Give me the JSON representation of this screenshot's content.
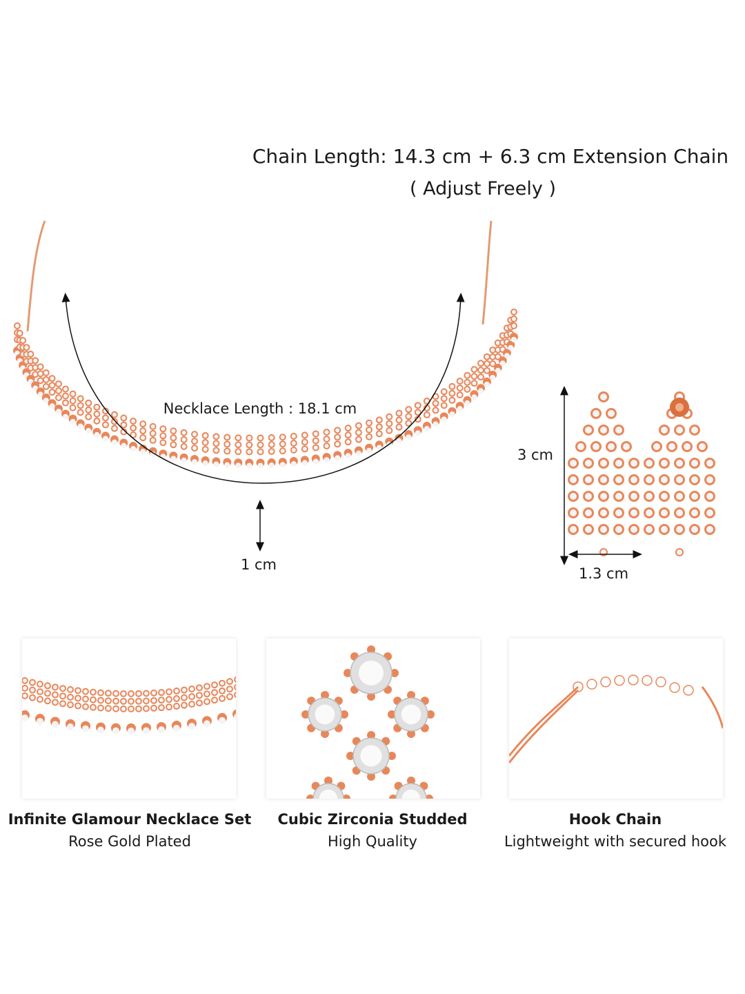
{
  "header": {
    "chain_length": "Chain Length: 14.3 cm + 6.3 cm Extension Chain",
    "adjust_note": "( Adjust Freely )"
  },
  "necklace": {
    "length_label": "Necklace Length : 18.1 cm",
    "drop_label": "1 cm"
  },
  "earrings": {
    "height_label": "3 cm",
    "width_label": "1.3 cm"
  },
  "features": [
    {
      "title": "Infinite Glamour Necklace Set",
      "subtitle": "Rose Gold Plated"
    },
    {
      "title": "Cubic Zirconia Studded",
      "subtitle": "High Quality"
    },
    {
      "title": "Hook Chain",
      "subtitle": "Lightweight with secured hook"
    }
  ],
  "colors": {
    "rose_gold": "#e8875a",
    "stone": "#f4f4f4",
    "text": "#1a1a1a"
  }
}
